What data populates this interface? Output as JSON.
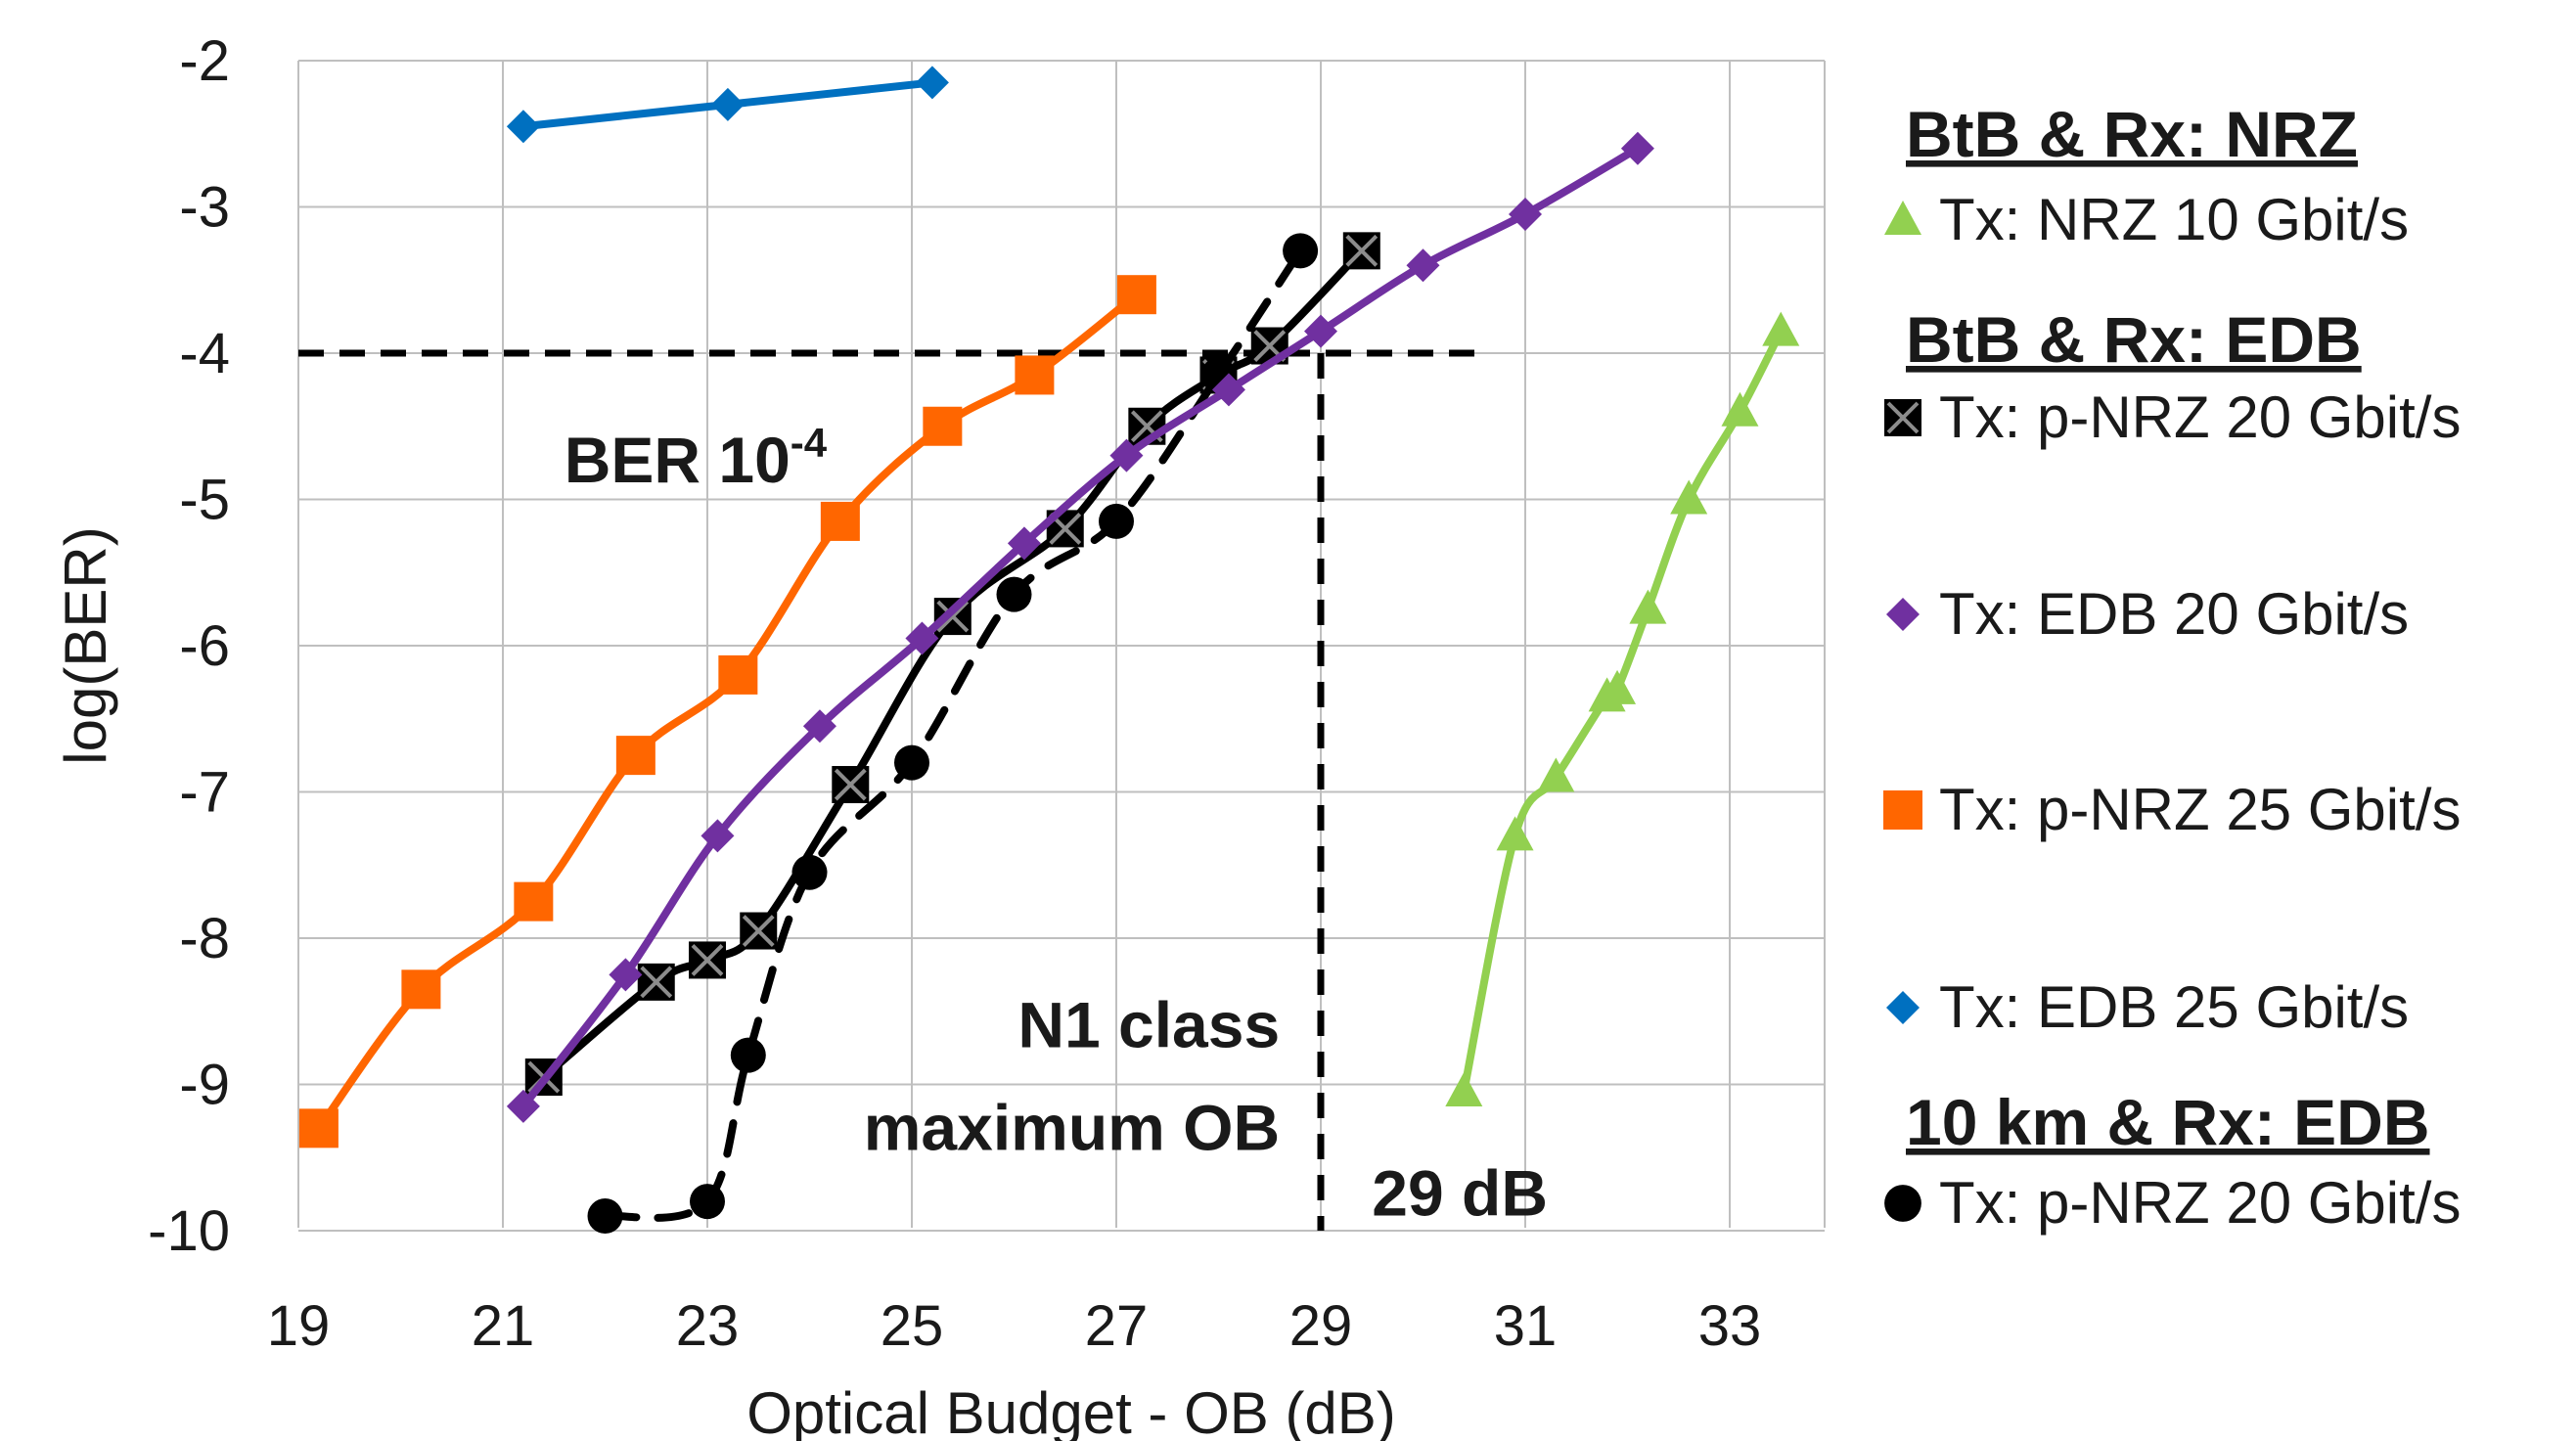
{
  "chart_data": {
    "type": "scatter",
    "xlabel": "Optical Budget - OB (dB)",
    "ylabel": "log(BER)",
    "xlim": [
      19,
      34
    ],
    "ylim": [
      -10,
      -2
    ],
    "x_ticks": [
      "19",
      "21",
      "23",
      "25",
      "27",
      "29",
      "31",
      "33"
    ],
    "y_ticks": [
      "-2",
      "-3",
      "-4",
      "-5",
      "-6",
      "-7",
      "-8",
      "-9",
      "-10"
    ],
    "grid": true,
    "legend_position": "right",
    "legend_groups": [
      {
        "heading": "BtB & Rx: NRZ",
        "series": [
          "Tx: NRZ 10 Gbit/s"
        ]
      },
      {
        "heading": "BtB & Rx: EDB",
        "series": [
          "Tx: p-NRZ 20 Gbit/s",
          "Tx: EDB 20 Gbit/s",
          "Tx: p-NRZ 25 Gbit/s",
          "Tx: EDB 25 Gbit/s"
        ]
      },
      {
        "heading": "10 km & Rx: EDB",
        "series": [
          "Tx: p-NRZ 20 Gbit/s"
        ]
      }
    ],
    "series": [
      {
        "name": "Tx: NRZ 10 Gbit/s",
        "group": "BtB & Rx: NRZ",
        "marker": "triangle",
        "color": "#92d050",
        "line": "solid",
        "x": [
          30.4,
          30.9,
          31.3,
          31.8,
          31.9,
          32.2,
          32.6,
          33.1,
          33.5
        ],
        "y": [
          -9.05,
          -7.3,
          -6.9,
          -6.35,
          -6.3,
          -5.75,
          -5.0,
          -4.4,
          -3.85
        ]
      },
      {
        "name": "Tx: p-NRZ 20 Gbit/s",
        "group": "BtB & Rx: EDB",
        "marker": "square-x",
        "color": "#000000",
        "line": "solid",
        "x": [
          21.4,
          22.5,
          23.0,
          23.5,
          24.4,
          25.4,
          26.5,
          27.3,
          28.0,
          28.5,
          29.4
        ],
        "y": [
          -8.95,
          -8.3,
          -8.15,
          -7.95,
          -6.95,
          -5.8,
          -5.2,
          -4.5,
          -4.15,
          -3.95,
          -3.3
        ]
      },
      {
        "name": "Tx: EDB 20 Gbit/s",
        "group": "BtB & Rx: EDB",
        "marker": "diamond",
        "color": "#7030a0",
        "line": "solid",
        "x": [
          21.2,
          22.2,
          23.1,
          24.1,
          25.1,
          26.1,
          27.1,
          28.1,
          29.0,
          30.0,
          31.0,
          32.1
        ],
        "y": [
          -9.15,
          -8.25,
          -7.3,
          -6.55,
          -5.95,
          -5.3,
          -4.7,
          -4.25,
          -3.85,
          -3.4,
          -3.05,
          -2.6
        ]
      },
      {
        "name": "Tx: p-NRZ 25 Gbit/s",
        "group": "BtB & Rx: EDB",
        "marker": "square",
        "color": "#ff6600",
        "line": "solid",
        "x": [
          19.2,
          20.2,
          21.3,
          22.3,
          23.3,
          24.3,
          25.3,
          26.2,
          27.2
        ],
        "y": [
          -9.3,
          -8.35,
          -7.75,
          -6.75,
          -6.2,
          -5.15,
          -4.5,
          -4.15,
          -3.6
        ]
      },
      {
        "name": "Tx: EDB 25 Gbit/s",
        "group": "BtB & Rx: EDB",
        "marker": "diamond",
        "color": "#0070c0",
        "line": "solid",
        "x": [
          21.2,
          23.2,
          25.2
        ],
        "y": [
          -2.45,
          -2.3,
          -2.15
        ]
      },
      {
        "name": "Tx: p-NRZ 20 Gbit/s",
        "group": "10 km & Rx: EDB",
        "marker": "circle",
        "color": "#000000",
        "line": "dashed",
        "x": [
          22.0,
          23.0,
          23.4,
          24.0,
          25.0,
          26.0,
          27.0,
          28.0,
          28.8
        ],
        "y": [
          -9.9,
          -9.8,
          -8.8,
          -7.55,
          -6.8,
          -5.65,
          -5.15,
          -4.15,
          -3.3
        ]
      }
    ],
    "annotations": [
      {
        "text": "BER 10",
        "superscript": "-4",
        "x": 21.6,
        "y": -4.75
      },
      {
        "text": "N1 class",
        "x": 28.6,
        "y": -8.6
      },
      {
        "text": "maximum OB",
        "x": 28.6,
        "y": -9.3
      },
      {
        "text": "29 dB",
        "x": 29.5,
        "y": -9.75
      }
    ],
    "reference_lines": [
      {
        "orientation": "horizontal",
        "y": -4,
        "x_from": 19,
        "x_to": 30.6,
        "style": "dashed"
      },
      {
        "orientation": "vertical",
        "x": 29,
        "y_from": -4,
        "y_to": -10,
        "style": "dashed"
      }
    ]
  }
}
